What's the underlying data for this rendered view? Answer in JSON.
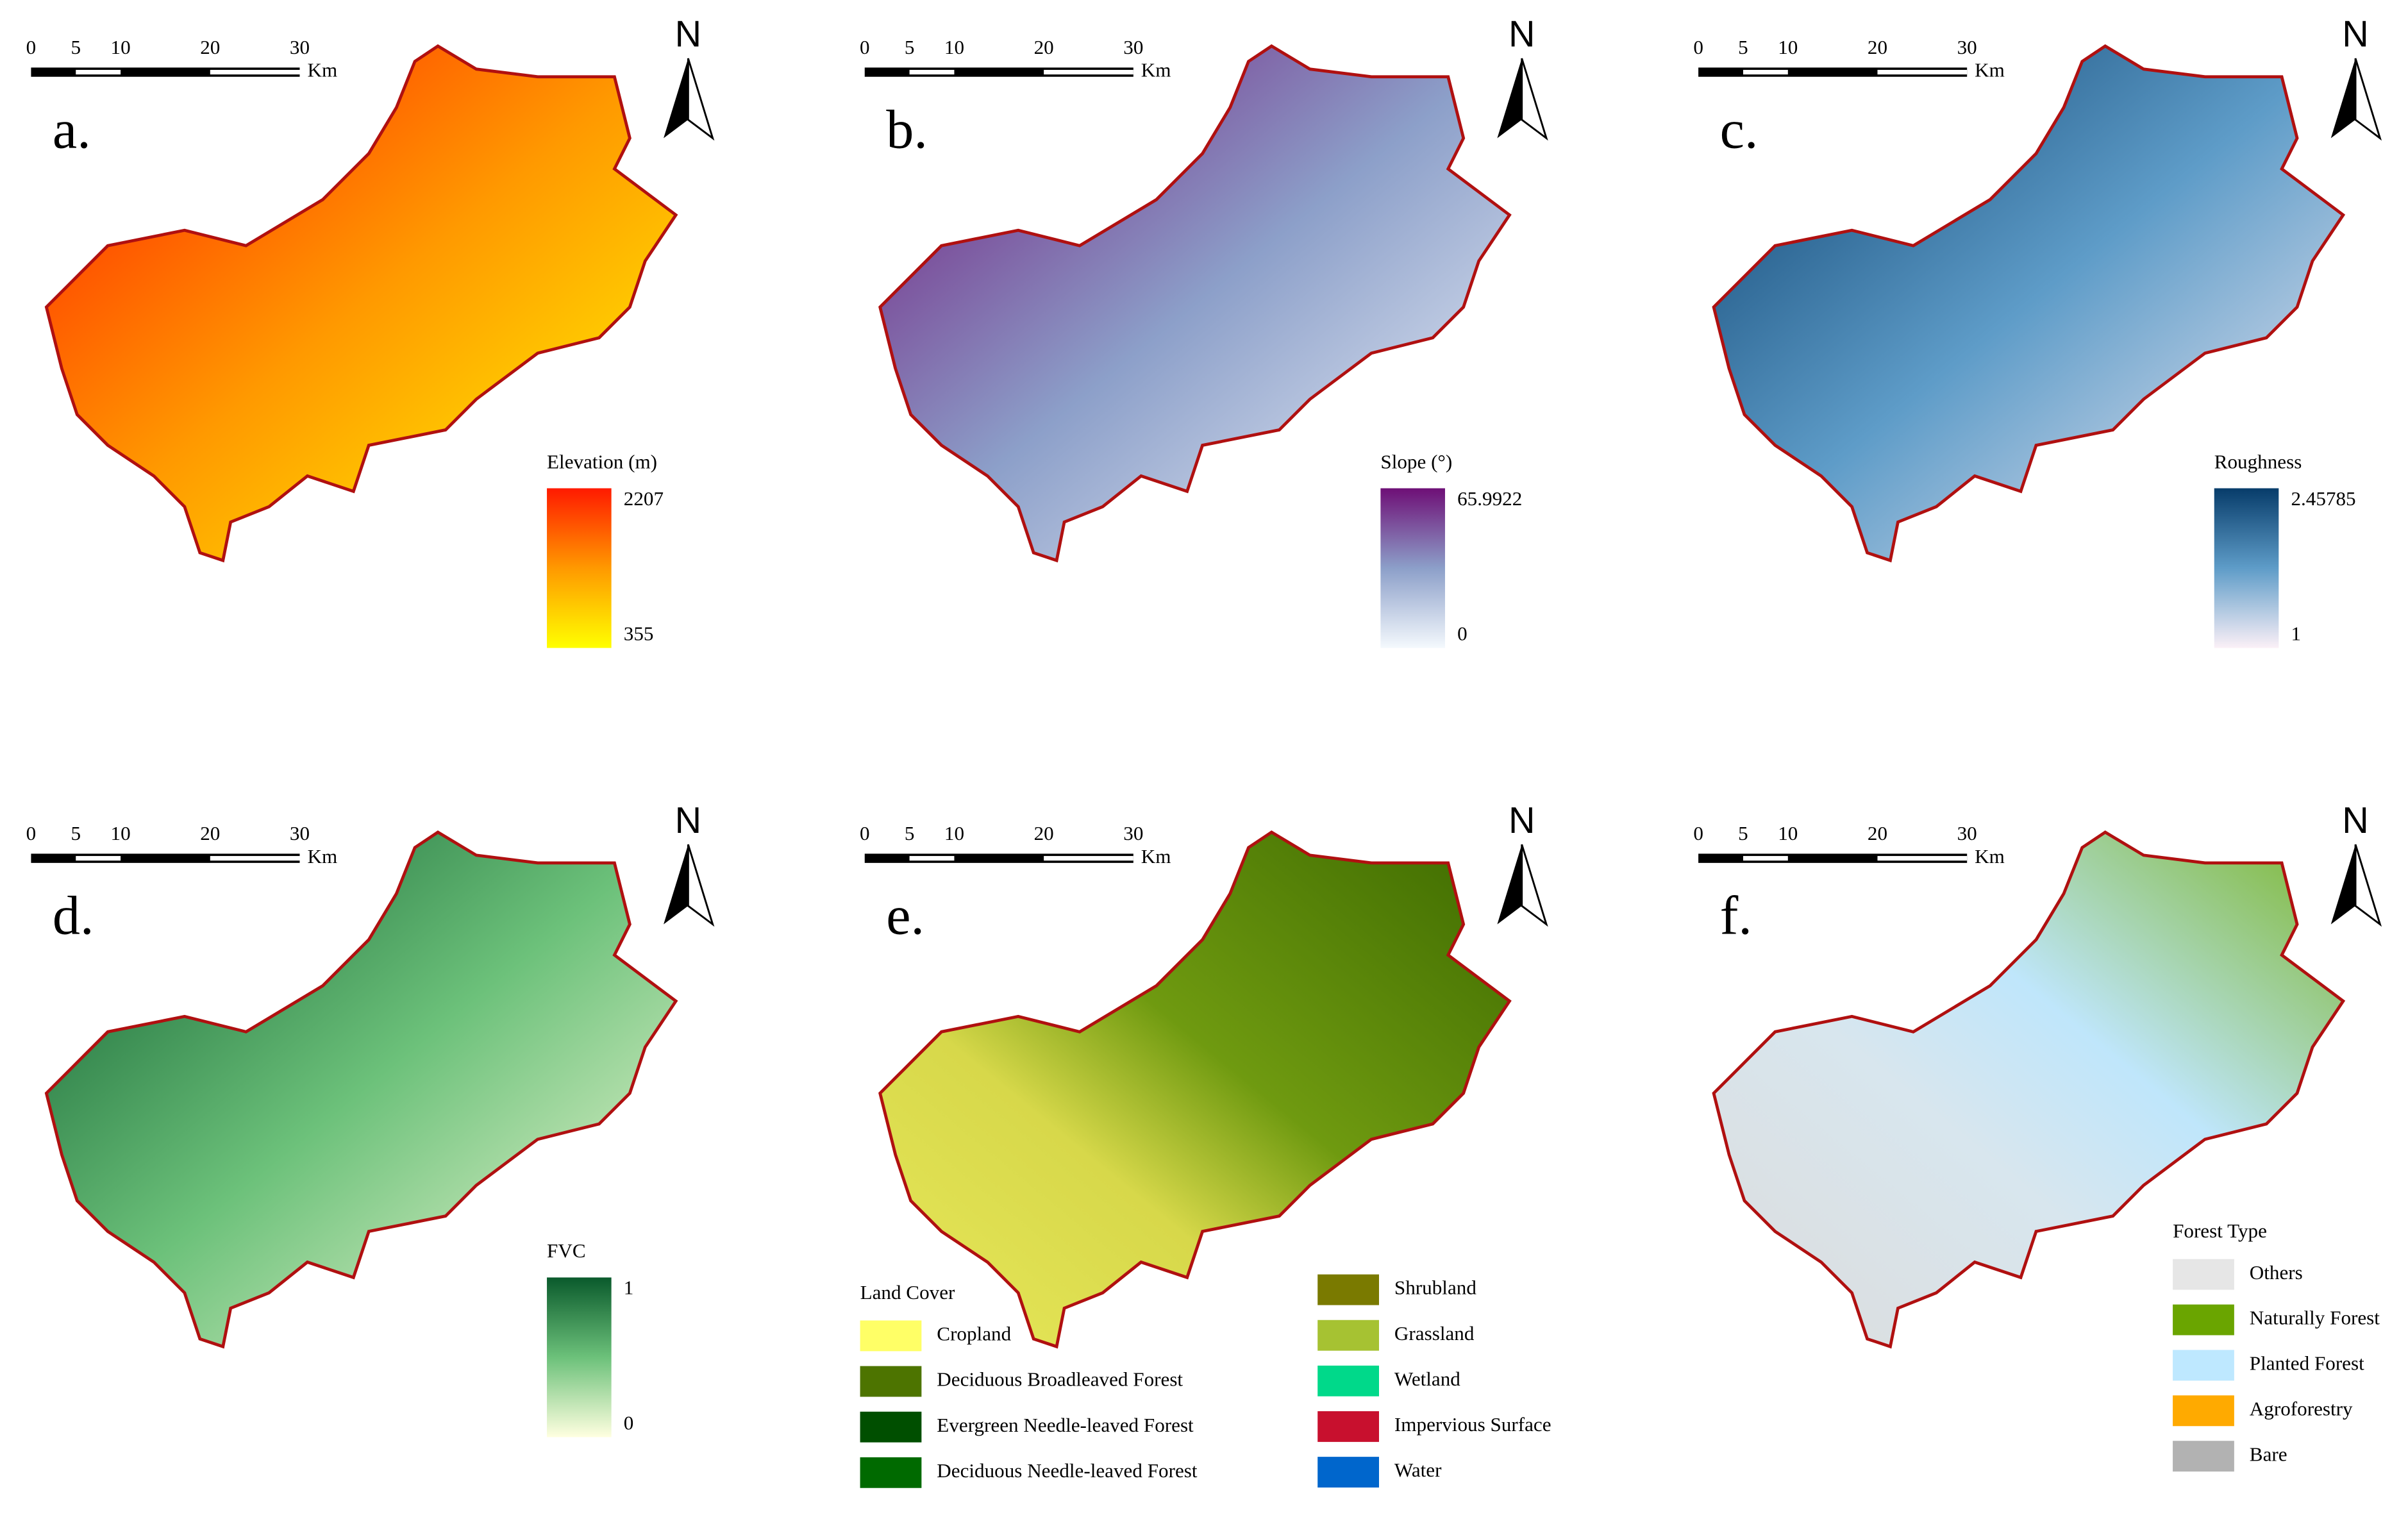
{
  "north": "N",
  "scale_bar": {
    "ticks": [
      0,
      5,
      10,
      20,
      30
    ],
    "unit": "Km"
  },
  "panels": [
    {
      "label": "a.",
      "legend_title": "Elevation (m)",
      "max": 2207,
      "min": 355,
      "colors": [
        "#ffff00",
        "#ff9900",
        "#ff1a00"
      ]
    },
    {
      "label": "b.",
      "legend_title": "Slope (°)",
      "max": 65.9922,
      "min": 0,
      "colors": [
        "#f4f9fd",
        "#8c9fc9",
        "#6e0f76"
      ]
    },
    {
      "label": "c.",
      "legend_title": "Roughness",
      "max": 2.45785,
      "min": 1,
      "colors": [
        "#fbf0f7",
        "#5e9cc8",
        "#073c6a"
      ]
    },
    {
      "label": "d.",
      "legend_title": "FVC",
      "max": 1,
      "min": 0,
      "colors": [
        "#ffffe0",
        "#6cc17a",
        "#0a5a2c"
      ]
    },
    {
      "label": "e."
    },
    {
      "label": "f."
    }
  ],
  "land_cover": {
    "title": "Land Cover",
    "classes": [
      {
        "name": "Cropland",
        "color": "#ffff66"
      },
      {
        "name": "Deciduous Broadleaved Forest",
        "color": "#4d7400"
      },
      {
        "name": "Evergreen Needle-leaved Forest",
        "color": "#004f00"
      },
      {
        "name": "Deciduous Needle-leaved Forest",
        "color": "#006a00"
      },
      {
        "name": "Shrubland",
        "color": "#7a7a00"
      },
      {
        "name": "Grassland",
        "color": "#a6c232"
      },
      {
        "name": "Wetland",
        "color": "#00d98a"
      },
      {
        "name": "Impervious Surface",
        "color": "#c8102e"
      },
      {
        "name": "Water",
        "color": "#0066cc"
      }
    ]
  },
  "forest_type": {
    "title": "Forest Type",
    "classes": [
      {
        "name": "Others",
        "color": "#e6e6e6"
      },
      {
        "name": "Naturally Forest",
        "color": "#6aa500"
      },
      {
        "name": "Planted Forest",
        "color": "#bee8ff"
      },
      {
        "name": "Agroforestry",
        "color": "#ffaa00"
      },
      {
        "name": "Bare",
        "color": "#b2b2b2"
      }
    ]
  }
}
